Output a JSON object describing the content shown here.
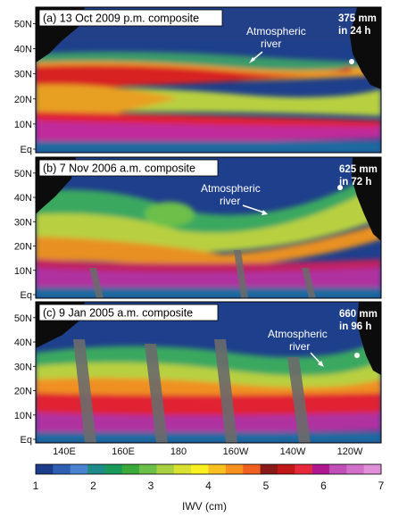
{
  "panels": [
    {
      "title": "(a)  13 Oct 2009 p.m. composite",
      "annotation": [
        "Atmospheric",
        "river"
      ],
      "rainfall": [
        "375 mm",
        "in 24 h"
      ]
    },
    {
      "title": "(b)  7 Nov 2006 a.m. composite",
      "annotation": [
        "Atmospheric",
        "river"
      ],
      "rainfall": [
        "625 mm",
        "in 72 h"
      ]
    },
    {
      "title": "(c)  9 Jan 2005 a.m. composite",
      "annotation": [
        "Atmospheric",
        "river"
      ],
      "rainfall": [
        "660 mm",
        "in 96 h"
      ]
    }
  ],
  "latitude_labels": [
    "50N",
    "40N",
    "30N",
    "20N",
    "10N",
    "Eq"
  ],
  "longitude_labels": [
    "140E",
    "160E",
    "180",
    "160W",
    "140W",
    "120W"
  ],
  "colorbar": {
    "label": "IWV (cm)",
    "ticks": [
      "1",
      "2",
      "3",
      "4",
      "5",
      "6",
      "7"
    ],
    "colors": [
      "#1d3d8a",
      "#2f5fb3",
      "#4b82cf",
      "#1f8a8a",
      "#1a9a5a",
      "#3aaa3a",
      "#6cc04a",
      "#a8d040",
      "#d8e030",
      "#f8f020",
      "#f8c020",
      "#f89020",
      "#f06020",
      "#8a1a1a",
      "#c01818",
      "#e8283a",
      "#b01890",
      "#c050b8",
      "#d070c8",
      "#e090d8"
    ]
  }
}
